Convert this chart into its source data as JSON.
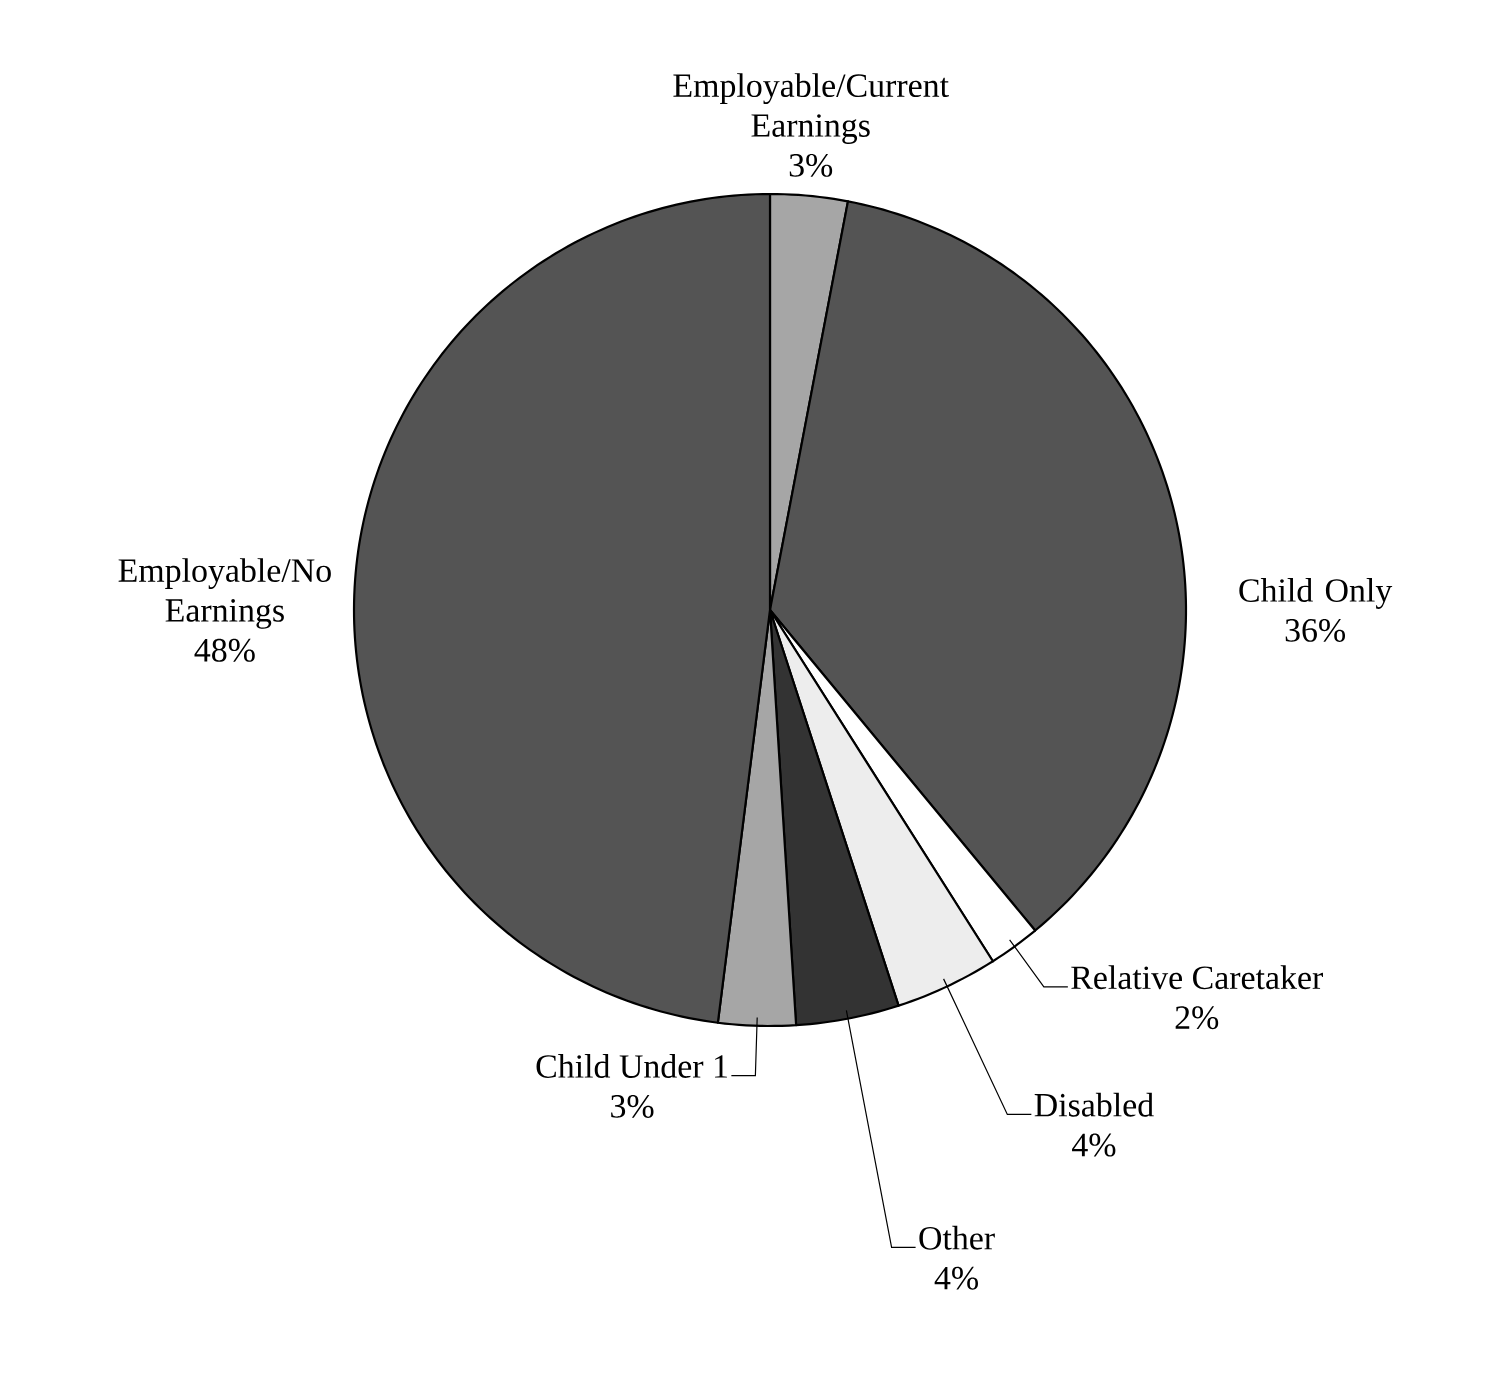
{
  "chart_data": {
    "type": "pie",
    "categories": [
      "Employable/Current Earnings",
      "Child Only",
      "Relative Caretaker",
      "Disabled",
      "Other",
      "Child Under 1",
      "Employable/No Earnings"
    ],
    "values": [
      3,
      36,
      2,
      4,
      4,
      3,
      48
    ],
    "value_labels": [
      "3%",
      "36%",
      "2%",
      "4%",
      "4%",
      "3%",
      "48%"
    ],
    "colors": [
      "#a6a6a6",
      "#545454",
      "#ffffff",
      "#ededed",
      "#333333",
      "#a6a6a6",
      "#545454"
    ]
  }
}
